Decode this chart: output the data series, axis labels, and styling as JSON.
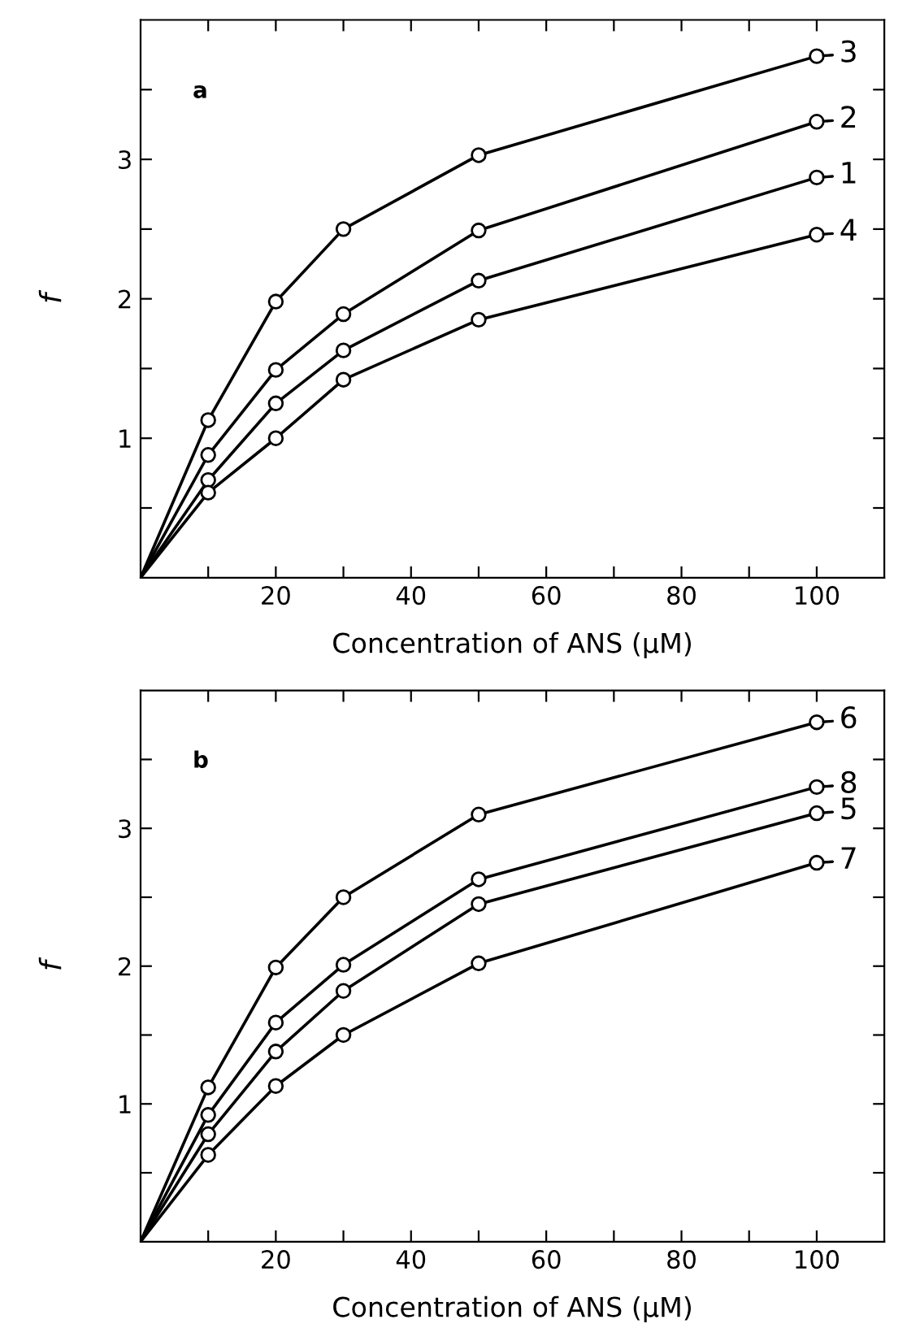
{
  "chart_data": [
    {
      "type": "line",
      "xlabel": "Concentration of ANS (µM)",
      "ylabel": "f",
      "annotations": [
        "a"
      ],
      "x": [
        0,
        10,
        20,
        30,
        50,
        100
      ],
      "xlim": [
        0,
        110
      ],
      "ylim": [
        0,
        4
      ],
      "xticks": [
        {
          "value": 10,
          "label": null
        },
        20,
        {
          "value": 30,
          "label": null
        },
        40,
        {
          "value": 50,
          "label": null
        },
        60,
        {
          "value": 70,
          "label": null
        },
        80,
        {
          "value": 90,
          "label": null
        },
        100
      ],
      "yticks": [
        {
          "value": 0.5,
          "label": null
        },
        1,
        {
          "value": 1.5,
          "label": null
        },
        2,
        {
          "value": 2.5,
          "label": null
        },
        3,
        {
          "value": 3.5,
          "label": null
        }
      ],
      "marker": "circle",
      "legend": "top right",
      "series": [
        {
          "name": "3",
          "color": "#000000",
          "values": [
            0,
            1.13,
            1.98,
            2.5,
            3.03,
            3.74
          ]
        },
        {
          "name": "2",
          "color": "#000000",
          "values": [
            0,
            0.88,
            1.49,
            1.89,
            2.49,
            3.27
          ]
        },
        {
          "name": "1",
          "color": "#000000",
          "values": [
            0,
            0.7,
            1.25,
            1.63,
            2.13,
            2.87
          ]
        },
        {
          "name": "4",
          "color": "#000000",
          "values": [
            0,
            0.61,
            1.0,
            1.42,
            1.85,
            2.46
          ]
        }
      ]
    },
    {
      "type": "line",
      "xlabel": "Concentration of ANS (µM)",
      "ylabel": "f",
      "annotations": [
        "b"
      ],
      "x": [
        0,
        10,
        20,
        30,
        50,
        100
      ],
      "xlim": [
        0,
        110
      ],
      "ylim": [
        0,
        4
      ],
      "xticks": [
        {
          "value": 10,
          "label": null
        },
        20,
        {
          "value": 30,
          "label": null
        },
        40,
        {
          "value": 50,
          "label": null
        },
        60,
        {
          "value": 70,
          "label": null
        },
        80,
        {
          "value": 90,
          "label": null
        },
        100
      ],
      "yticks": [
        {
          "value": 0.5,
          "label": null
        },
        1,
        {
          "value": 1.5,
          "label": null
        },
        2,
        {
          "value": 2.5,
          "label": null
        },
        3,
        {
          "value": 3.5,
          "label": null
        }
      ],
      "marker": "circle",
      "legend": "top right",
      "series": [
        {
          "name": "6",
          "color": "#000000",
          "values": [
            0,
            1.12,
            1.99,
            2.5,
            3.1,
            3.77
          ]
        },
        {
          "name": "8",
          "color": "#000000",
          "values": [
            0,
            0.92,
            1.59,
            2.01,
            2.63,
            3.3
          ]
        },
        {
          "name": "5",
          "color": "#000000",
          "values": [
            0,
            0.78,
            1.38,
            1.82,
            2.45,
            3.11
          ]
        },
        {
          "name": "7",
          "color": "#000000",
          "values": [
            0,
            0.63,
            1.13,
            1.5,
            2.02,
            2.75
          ]
        }
      ]
    }
  ]
}
